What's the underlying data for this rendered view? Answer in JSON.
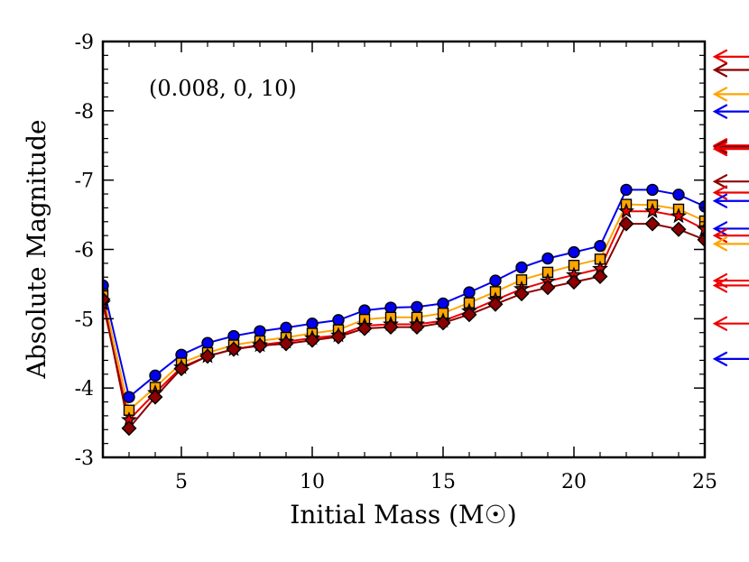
{
  "chart_data": {
    "type": "line",
    "title": "",
    "annotation": "(0.008, 0, 10)",
    "xlabel": "Initial Mass (M☉)",
    "ylabel": "Absolute Magnitude",
    "xlim": [
      2,
      25
    ],
    "ylim": [
      -3,
      -9
    ],
    "x_ticks": [
      5,
      10,
      15,
      20,
      25
    ],
    "x_tick_labels": [
      "5",
      "10",
      "15",
      "20",
      "25"
    ],
    "y_ticks": [
      -3,
      -4,
      -5,
      -6,
      -7,
      -8,
      -9
    ],
    "y_tick_labels": [
      "-3",
      "-4",
      "-5",
      "-6",
      "-7",
      "-8",
      "-9"
    ],
    "grid": false,
    "x": [
      2,
      3,
      4,
      5,
      6,
      7,
      8,
      9,
      10,
      11,
      12,
      13,
      14,
      15,
      16,
      17,
      18,
      19,
      20,
      21,
      22,
      23,
      24,
      25
    ],
    "series": [
      {
        "name": "blue-circle",
        "color": "#0000ee",
        "marker": "circle",
        "values": [
          -5.48,
          -3.87,
          -4.18,
          -4.48,
          -4.65,
          -4.75,
          -4.82,
          -4.87,
          -4.93,
          -4.98,
          -5.12,
          -5.16,
          -5.17,
          -5.22,
          -5.38,
          -5.55,
          -5.74,
          -5.87,
          -5.96,
          -6.05,
          -6.86,
          -6.86,
          -6.79,
          -6.62
        ]
      },
      {
        "name": "orange-square",
        "color": "#ffa500",
        "marker": "square",
        "values": [
          -5.35,
          -3.68,
          -4.01,
          -4.36,
          -4.51,
          -4.62,
          -4.68,
          -4.73,
          -4.79,
          -4.84,
          -4.99,
          -5.02,
          -5.02,
          -5.08,
          -5.23,
          -5.39,
          -5.56,
          -5.67,
          -5.77,
          -5.86,
          -6.65,
          -6.64,
          -6.58,
          -6.41
        ]
      },
      {
        "name": "red-star",
        "color": "#ee0000",
        "marker": "star",
        "values": [
          -5.22,
          -3.54,
          -3.93,
          -4.3,
          -4.46,
          -4.56,
          -4.62,
          -4.67,
          -4.72,
          -4.76,
          -4.9,
          -4.92,
          -4.92,
          -4.97,
          -5.11,
          -5.27,
          -5.43,
          -5.54,
          -5.63,
          -5.72,
          -6.55,
          -6.55,
          -6.48,
          -6.29
        ]
      },
      {
        "name": "darkred-diamond",
        "color": "#8b0000",
        "marker": "diamond",
        "values": [
          -5.28,
          -3.42,
          -3.87,
          -4.28,
          -4.46,
          -4.56,
          -4.61,
          -4.64,
          -4.69,
          -4.74,
          -4.86,
          -4.88,
          -4.88,
          -4.94,
          -5.06,
          -5.21,
          -5.36,
          -5.45,
          -5.53,
          -5.61,
          -6.37,
          -6.37,
          -6.29,
          -6.14
        ]
      }
    ],
    "reference_arrows": [
      {
        "value": -8.78,
        "color": "#ee0000"
      },
      {
        "value": -8.59,
        "color": "#8b0000"
      },
      {
        "value": -8.24,
        "color": "#ffa500"
      },
      {
        "value": -7.99,
        "color": "#0000ee"
      },
      {
        "value": -7.5,
        "color": "#ee0000"
      },
      {
        "value": -7.48,
        "color": "#8b0000"
      },
      {
        "value": -7.45,
        "color": "#ee0000"
      },
      {
        "value": -6.98,
        "color": "#8b0000"
      },
      {
        "value": -6.82,
        "color": "#ee0000"
      },
      {
        "value": -6.7,
        "color": "#0000ee"
      },
      {
        "value": -6.3,
        "color": "#0000ee"
      },
      {
        "value": -6.2,
        "color": "#ee0000"
      },
      {
        "value": -6.08,
        "color": "#ffa500"
      },
      {
        "value": -5.55,
        "color": "#ee0000"
      },
      {
        "value": -5.48,
        "color": "#ee0000"
      },
      {
        "value": -4.93,
        "color": "#ee0000"
      },
      {
        "value": -4.42,
        "color": "#0000ee"
      }
    ]
  }
}
